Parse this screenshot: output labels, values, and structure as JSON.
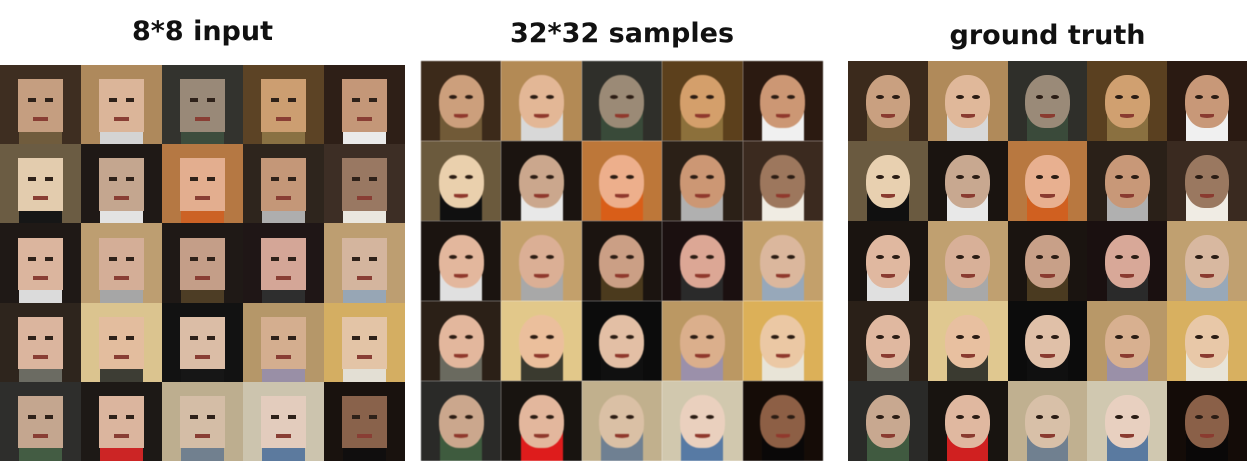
{
  "panels": [
    {
      "id": "input",
      "title": "8*8 input",
      "style": "pixelated"
    },
    {
      "id": "samples",
      "title": "32*32 samples",
      "style": "blurred"
    },
    {
      "id": "truth",
      "title": "ground truth",
      "style": "sharp"
    }
  ],
  "tiles": [
    {
      "bg": "#6f5a3a",
      "hair": "#3b2a1c",
      "skin": "#c9a080"
    },
    {
      "bg": "#d8d8d8",
      "hair": "#b08a5a",
      "skin": "#e0b89a"
    },
    {
      "bg": "#3a4a3a",
      "hair": "#2f2f2a",
      "skin": "#9a8a78"
    },
    {
      "bg": "#8a7040",
      "hair": "#5a4020",
      "skin": "#d0a070"
    },
    {
      "bg": "#f0f0f0",
      "hair": "#2a1a12",
      "skin": "#c89878"
    },
    {
      "bg": "#101010",
      "hair": "#6a5a40",
      "skin": "#e8d0b0"
    },
    {
      "bg": "#e8e8e8",
      "hair": "#1a1410",
      "skin": "#c8a890"
    },
    {
      "bg": "#d06020",
      "hair": "#b87840",
      "skin": "#e8b090"
    },
    {
      "bg": "#b0b0b0",
      "hair": "#2a2018",
      "skin": "#c89878"
    },
    {
      "bg": "#f0ece4",
      "hair": "#3a2a20",
      "skin": "#9a7860"
    },
    {
      "bg": "#e0e0e0",
      "hair": "#1a1410",
      "skin": "#e0b8a0"
    },
    {
      "bg": "#a8a8a8",
      "hair": "#c0a070",
      "skin": "#d8b098"
    },
    {
      "bg": "#4a3a20",
      "hair": "#1a1410",
      "skin": "#c8a088"
    },
    {
      "bg": "#2a2a2a",
      "hair": "#1a1010",
      "skin": "#d8a898"
    },
    {
      "bg": "#98a8b8",
      "hair": "#c0a070",
      "skin": "#d8b8a0"
    },
    {
      "bg": "#6a6a60",
      "hair": "#2a2018",
      "skin": "#e0b8a0"
    },
    {
      "bg": "#3a3a30",
      "hair": "#e0c890",
      "skin": "#e8c0a0"
    },
    {
      "bg": "#101010",
      "hair": "#0c0c0c",
      "skin": "#e0c0a8"
    },
    {
      "bg": "#9a90a8",
      "hair": "#b89868",
      "skin": "#d8b090"
    },
    {
      "bg": "#e8e4d8",
      "hair": "#d8b060",
      "skin": "#e8c8a8"
    },
    {
      "bg": "#405a40",
      "hair": "#2a2a28",
      "skin": "#c8a890"
    },
    {
      "bg": "#d02020",
      "hair": "#181410",
      "skin": "#e0b8a0"
    },
    {
      "bg": "#708090",
      "hair": "#c0b090",
      "skin": "#d8c0a8"
    },
    {
      "bg": "#5a7aa0",
      "hair": "#d0c8b0",
      "skin": "#e8d0c0"
    },
    {
      "bg": "#0a0808",
      "hair": "#140c08",
      "skin": "#8a6048"
    }
  ]
}
